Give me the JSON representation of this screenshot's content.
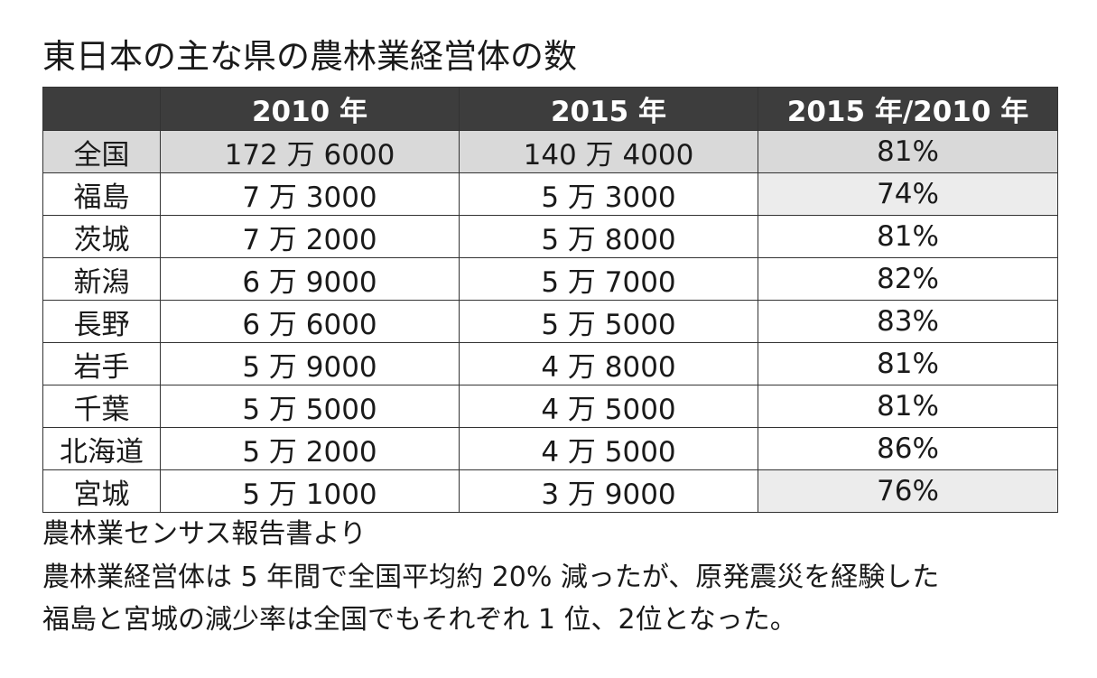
{
  "title": "東日本の主な県の農林業経営体の数",
  "table": {
    "headers": [
      "",
      "2010 年",
      "2015 年",
      "2015 年/2010 年"
    ],
    "rows": [
      {
        "prefecture": "全国",
        "y2010": "172 万 6000",
        "y2015": "140 万 4000",
        "ratio": "81%"
      },
      {
        "prefecture": "福島",
        "y2010": "7 万 3000",
        "y2015": "5 万 3000",
        "ratio": "74%"
      },
      {
        "prefecture": "茨城",
        "y2010": "7 万 2000",
        "y2015": "5 万 8000",
        "ratio": "81%"
      },
      {
        "prefecture": "新潟",
        "y2010": "6 万 9000",
        "y2015": "5 万 7000",
        "ratio": "82%"
      },
      {
        "prefecture": "長野",
        "y2010": "6 万 6000",
        "y2015": "5 万 5000",
        "ratio": "83%"
      },
      {
        "prefecture": "岩手",
        "y2010": "5 万 9000",
        "y2015": "4 万 8000",
        "ratio": "81%"
      },
      {
        "prefecture": "千葉",
        "y2010": "5 万 5000",
        "y2015": "4 万 5000",
        "ratio": "81%"
      },
      {
        "prefecture": "北海道",
        "y2010": "5 万 2000",
        "y2015": "4 万 5000",
        "ratio": "86%"
      },
      {
        "prefecture": "宮城",
        "y2010": "5 万 1000",
        "y2015": "3 万 9000",
        "ratio": "76%"
      }
    ]
  },
  "source": "農林業センサス報告書より",
  "note": {
    "line1": "農林業経営体は 5 年間で全国平均約 20% 減ったが、原発震災を経験した",
    "line2": "福島と宮城の減少率は全国でもそれぞれ 1 位、2位となった。"
  },
  "colors": {
    "header_bg": "#3d3d3d",
    "national_row_bg": "#d9d9d9",
    "highlight_cell_bg": "#ececec",
    "border": "#333333"
  }
}
